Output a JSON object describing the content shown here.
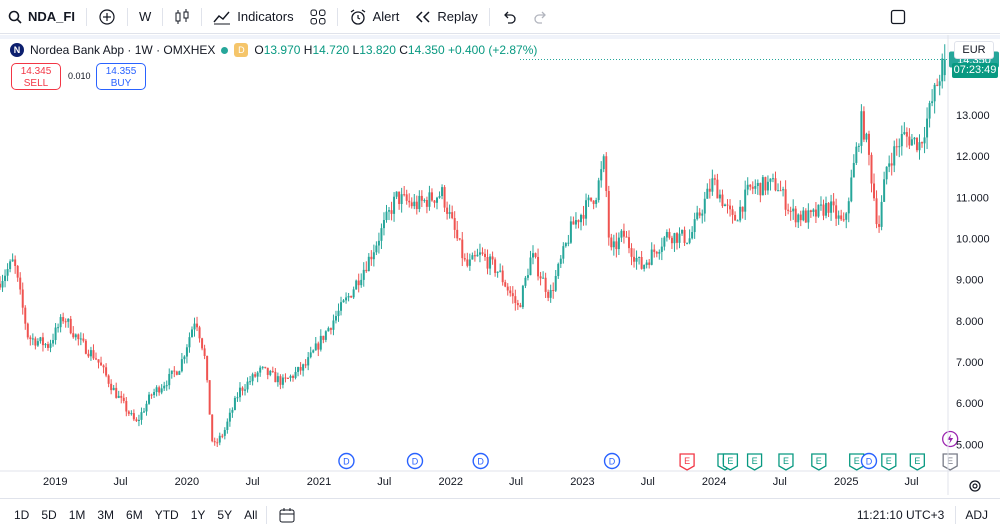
{
  "toolbar": {
    "symbol": "NDA_FI",
    "interval": "W",
    "indicators_label": "Indicators",
    "alert_label": "Alert",
    "replay_label": "Replay"
  },
  "legend": {
    "logo_letter": "N",
    "title": "Nordea Bank Abp · 1W · OMXHEX",
    "badge": "D",
    "open_label": "O",
    "open": "13.970",
    "high_label": "H",
    "high": "14.720",
    "low_label": "L",
    "low": "13.820",
    "close_label": "C",
    "close": "14.350",
    "change": "+0.400 (+2.87%)"
  },
  "trade": {
    "sell_price": "14.345",
    "sell_label": "SELL",
    "spread": "0.010",
    "buy_price": "14.355",
    "buy_label": "BUY"
  },
  "price_scale": {
    "currency": "EUR",
    "countdown": "07:23:49"
  },
  "bottom": {
    "timeframes": [
      "1D",
      "5D",
      "1M",
      "3M",
      "6M",
      "YTD",
      "1Y",
      "5Y",
      "All"
    ],
    "clock": "11:21:10 UTC+3",
    "adj": "ADJ"
  },
  "colors": {
    "up": "#26a69a",
    "down": "#ef5350",
    "accent": "#2962ff"
  },
  "chart_data": {
    "type": "candlestick",
    "ylim": [
      4.35,
      14.75
    ],
    "y_ticks": [
      5.0,
      6.0,
      7.0,
      8.0,
      9.0,
      10.0,
      11.0,
      12.0,
      13.0
    ],
    "y_tick_labels": [
      "5.000",
      "6.000",
      "7.000",
      "8.000",
      "9.000",
      "10.000",
      "11.000",
      "12.000",
      "13.000"
    ],
    "x_range": [
      "2018-08-01",
      "2025-10-10"
    ],
    "x_ticks": [
      {
        "date": "2019-01-01",
        "label": "2019"
      },
      {
        "date": "2019-07-01",
        "label": "Jul"
      },
      {
        "date": "2020-01-01",
        "label": "2020"
      },
      {
        "date": "2020-07-01",
        "label": "Jul"
      },
      {
        "date": "2021-01-01",
        "label": "2021"
      },
      {
        "date": "2021-07-01",
        "label": "Jul"
      },
      {
        "date": "2022-01-01",
        "label": "2022"
      },
      {
        "date": "2022-07-01",
        "label": "Jul"
      },
      {
        "date": "2023-01-01",
        "label": "2023"
      },
      {
        "date": "2023-07-01",
        "label": "Jul"
      },
      {
        "date": "2024-01-01",
        "label": "2024"
      },
      {
        "date": "2024-07-01",
        "label": "Jul"
      },
      {
        "date": "2025-01-01",
        "label": "2025"
      },
      {
        "date": "2025-07-01",
        "label": "Jul"
      }
    ],
    "last_price": 14.35,
    "anchors": [
      [
        "2018-08-01",
        8.9
      ],
      [
        "2018-09-15",
        9.45
      ],
      [
        "2018-10-25",
        7.6
      ],
      [
        "2018-12-20",
        7.4
      ],
      [
        "2019-02-01",
        8.1
      ],
      [
        "2019-03-15",
        7.5
      ],
      [
        "2019-05-01",
        7.1
      ],
      [
        "2019-06-20",
        6.3
      ],
      [
        "2019-08-20",
        5.5
      ],
      [
        "2019-10-01",
        6.2
      ],
      [
        "2019-11-20",
        6.6
      ],
      [
        "2019-12-20",
        6.9
      ],
      [
        "2020-02-01",
        8.1
      ],
      [
        "2020-02-25",
        7.2
      ],
      [
        "2020-03-20",
        4.9
      ],
      [
        "2020-04-20",
        5.3
      ],
      [
        "2020-06-01",
        6.3
      ],
      [
        "2020-08-01",
        6.8
      ],
      [
        "2020-10-01",
        6.5
      ],
      [
        "2020-12-01",
        6.9
      ],
      [
        "2021-02-01",
        7.8
      ],
      [
        "2021-04-01",
        8.6
      ],
      [
        "2021-06-01",
        9.6
      ],
      [
        "2021-08-10",
        11.0
      ],
      [
        "2021-10-01",
        10.8
      ],
      [
        "2021-12-15",
        11.1
      ],
      [
        "2022-02-20",
        9.3
      ],
      [
        "2022-04-01",
        9.6
      ],
      [
        "2022-05-20",
        9.2
      ],
      [
        "2022-07-15",
        8.3
      ],
      [
        "2022-08-20",
        9.6
      ],
      [
        "2022-10-10",
        8.6
      ],
      [
        "2022-12-10",
        10.3
      ],
      [
        "2023-02-15",
        11.1
      ],
      [
        "2023-03-10",
        11.9
      ],
      [
        "2023-03-25",
        9.6
      ],
      [
        "2023-05-01",
        10.1
      ],
      [
        "2023-06-20",
        9.3
      ],
      [
        "2023-09-01",
        10.1
      ],
      [
        "2023-11-01",
        10.0
      ],
      [
        "2024-01-05",
        11.4
      ],
      [
        "2024-03-01",
        10.4
      ],
      [
        "2024-04-15",
        11.2
      ],
      [
        "2024-06-01",
        11.3
      ],
      [
        "2024-07-01",
        11.3
      ],
      [
        "2024-08-10",
        10.6
      ],
      [
        "2024-10-01",
        10.5
      ],
      [
        "2024-11-20",
        10.8
      ],
      [
        "2025-01-01",
        10.3
      ],
      [
        "2025-02-20",
        12.9
      ],
      [
        "2025-03-10",
        12.1
      ],
      [
        "2025-04-07",
        10.2
      ],
      [
        "2025-05-01",
        11.8
      ],
      [
        "2025-06-15",
        12.5
      ],
      [
        "2025-08-01",
        12.3
      ],
      [
        "2025-09-15",
        13.7
      ],
      [
        "2025-10-07",
        14.35
      ]
    ],
    "events": [
      {
        "date": "2021-03-18",
        "type": "D"
      },
      {
        "date": "2021-09-24",
        "type": "D"
      },
      {
        "date": "2022-03-25",
        "type": "D"
      },
      {
        "date": "2023-03-24",
        "type": "D"
      },
      {
        "date": "2023-10-18",
        "type": "E",
        "state": "negative"
      },
      {
        "date": "2024-01-31",
        "type": "E"
      },
      {
        "date": "2024-02-15",
        "type": "E"
      },
      {
        "date": "2024-04-22",
        "type": "E"
      },
      {
        "date": "2024-07-18",
        "type": "E"
      },
      {
        "date": "2024-10-17",
        "type": "E"
      },
      {
        "date": "2025-01-30",
        "type": "E"
      },
      {
        "date": "2025-03-05",
        "type": "D"
      },
      {
        "date": "2025-04-29",
        "type": "E"
      },
      {
        "date": "2025-07-17",
        "type": "E"
      },
      {
        "date": "2025-10-16",
        "type": "E",
        "state": "upcoming"
      }
    ]
  }
}
